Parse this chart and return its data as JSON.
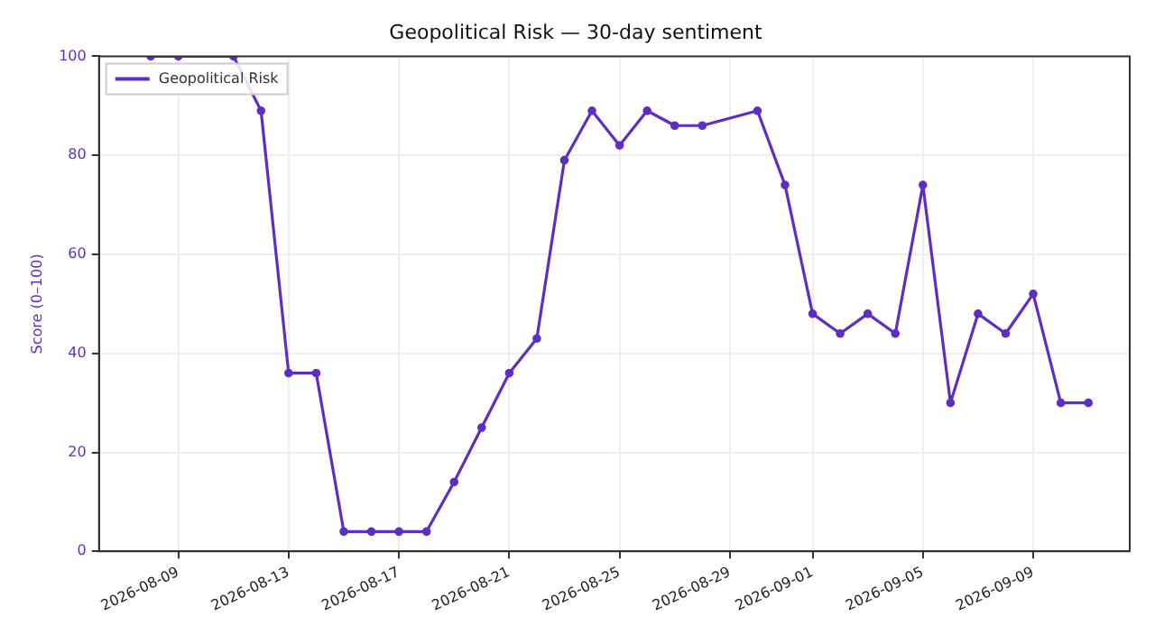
{
  "chart_data": {
    "type": "line",
    "title": "Geopolitical Risk — 30-day sentiment",
    "ylabel": "Score (0–100)",
    "x": [
      "2026-08-08",
      "2026-08-09",
      "2026-08-11",
      "2026-08-12",
      "2026-08-13",
      "2026-08-14",
      "2026-08-15",
      "2026-08-16",
      "2026-08-17",
      "2026-08-18",
      "2026-08-19",
      "2026-08-20",
      "2026-08-21",
      "2026-08-22",
      "2026-08-23",
      "2026-08-24",
      "2026-08-25",
      "2026-08-26",
      "2026-08-27",
      "2026-08-28",
      "2026-08-30",
      "2026-08-31",
      "2026-09-01",
      "2026-09-02",
      "2026-09-03",
      "2026-09-04",
      "2026-09-05",
      "2026-09-06",
      "2026-09-07",
      "2026-09-08",
      "2026-09-09",
      "2026-09-10",
      "2026-09-11"
    ],
    "series": [
      {
        "name": "Geopolitical Risk",
        "color": "#5e2ec4",
        "values": [
          100,
          100,
          100,
          89,
          36,
          36,
          4,
          4,
          4,
          4,
          14,
          25,
          36,
          43,
          79,
          89,
          82,
          89,
          86,
          86,
          89,
          74,
          48,
          44,
          48,
          44,
          74,
          30,
          48,
          44,
          52,
          30,
          30
        ]
      }
    ],
    "xlim": [
      "2026-08-06T03:00",
      "2026-09-12T12:00"
    ],
    "xticks": [
      "2026-08-09",
      "2026-08-13",
      "2026-08-17",
      "2026-08-21",
      "2026-08-25",
      "2026-08-29",
      "2026-09-01",
      "2026-09-05",
      "2026-09-09"
    ],
    "ylim": [
      0,
      100
    ],
    "yticks": [
      0,
      20,
      40,
      60,
      80,
      100
    ],
    "grid": true,
    "legend": "top left",
    "marker": "circle",
    "line_style": "solid"
  }
}
